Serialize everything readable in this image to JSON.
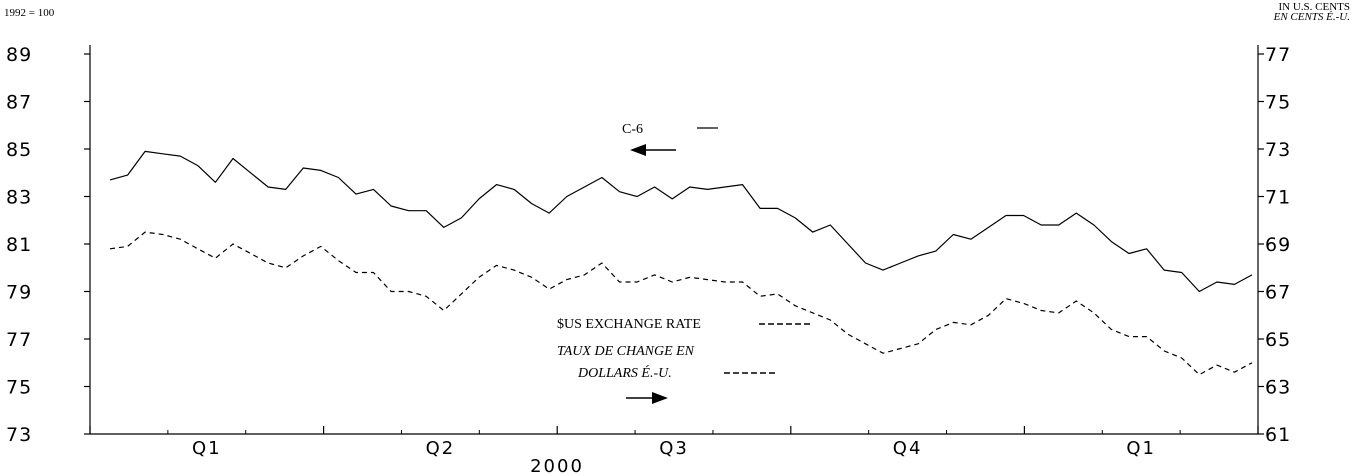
{
  "chart_data": {
    "type": "line",
    "left_axis_caption": "1992 = 100",
    "right_axis_caption_en": "IN U.S. CENTS",
    "right_axis_caption_fr": "EN CENTS É.-U.",
    "left_ylim": [
      73,
      89
    ],
    "right_ylim": [
      61,
      77
    ],
    "left_ticks": [
      "89",
      "87",
      "85",
      "83",
      "81",
      "79",
      "77",
      "75",
      "73"
    ],
    "right_ticks": [
      "77",
      "75",
      "73",
      "71",
      "69",
      "67",
      "65",
      "63",
      "61"
    ],
    "quarters": [
      "Q1",
      "Q2",
      "Q3",
      "Q4",
      "Q1"
    ],
    "year_label": "2000",
    "grid": false,
    "series": [
      {
        "name": "C-6",
        "axis": "left",
        "style": "solid",
        "values": [
          83.7,
          83.9,
          84.9,
          84.8,
          84.7,
          84.3,
          83.6,
          84.6,
          84.0,
          83.4,
          83.3,
          84.2,
          84.1,
          83.8,
          83.1,
          83.3,
          82.6,
          82.4,
          82.4,
          81.7,
          82.1,
          82.9,
          83.5,
          83.3,
          82.7,
          82.3,
          83.0,
          83.4,
          83.8,
          83.2,
          83.0,
          83.4,
          82.9,
          83.4,
          83.3,
          83.4,
          83.5,
          82.5,
          82.5,
          82.1,
          81.5,
          81.8,
          81.0,
          80.2,
          79.9,
          80.2,
          80.5,
          80.7,
          81.4,
          81.2,
          81.7,
          82.2,
          82.2,
          81.8,
          81.8,
          82.3,
          81.8,
          81.1,
          80.6,
          80.8,
          79.9,
          79.8,
          79.0,
          79.4,
          79.3,
          79.7
        ]
      },
      {
        "name": "$US EXCHANGE RATE",
        "axis": "right",
        "style": "dashed",
        "values": [
          68.8,
          68.9,
          69.5,
          69.4,
          69.2,
          68.8,
          68.4,
          69.0,
          68.6,
          68.2,
          68.0,
          68.5,
          68.9,
          68.3,
          67.8,
          67.8,
          67.0,
          67.0,
          66.8,
          66.2,
          66.9,
          67.6,
          68.1,
          67.9,
          67.6,
          67.1,
          67.5,
          67.7,
          68.2,
          67.4,
          67.4,
          67.7,
          67.4,
          67.6,
          67.5,
          67.4,
          67.4,
          66.8,
          66.9,
          66.4,
          66.1,
          65.8,
          65.2,
          64.8,
          64.4,
          64.6,
          64.8,
          65.4,
          65.7,
          65.6,
          66.0,
          66.7,
          66.5,
          66.2,
          66.1,
          66.6,
          66.1,
          65.4,
          65.1,
          65.1,
          64.5,
          64.2,
          63.5,
          63.9,
          63.6,
          64.0
        ]
      }
    ],
    "annotations": {
      "c6_label": "C-6",
      "fx_label_en": "$US EXCHANGE RATE",
      "fx_label_fr_line1": "TAUX DE CHANGE EN",
      "fx_label_fr_line2": "DOLLARS É.-U."
    }
  }
}
